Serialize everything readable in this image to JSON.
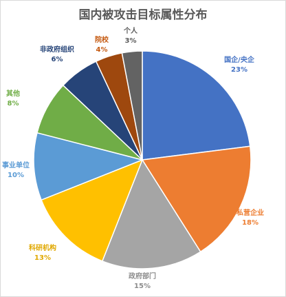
{
  "chart_data": {
    "type": "pie",
    "title": "国内被攻击目标属性分布",
    "start_angle_deg": 0,
    "direction": "clockwise",
    "legend": "none",
    "slices": [
      {
        "name": "国企/央企",
        "value": 23,
        "label": "23%",
        "color": "#4472C4"
      },
      {
        "name": "私营企业",
        "value": 18,
        "label": "18%",
        "color": "#ED7D31"
      },
      {
        "name": "政府部门",
        "value": 15,
        "label": "15%",
        "color": "#A5A5A5"
      },
      {
        "name": "科研机构",
        "value": 13,
        "label": "13%",
        "color": "#FFC000"
      },
      {
        "name": "事业单位",
        "value": 10,
        "label": "10%",
        "color": "#5B9BD5"
      },
      {
        "name": "其他",
        "value": 8,
        "label": "8%",
        "color": "#70AD47"
      },
      {
        "name": "非政府组织",
        "value": 6,
        "label": "6%",
        "color": "#264478"
      },
      {
        "name": "院校",
        "value": 4,
        "label": "4%",
        "color": "#9E480E"
      },
      {
        "name": "个人",
        "value": 3,
        "label": "3%",
        "color": "#636363"
      }
    ]
  }
}
